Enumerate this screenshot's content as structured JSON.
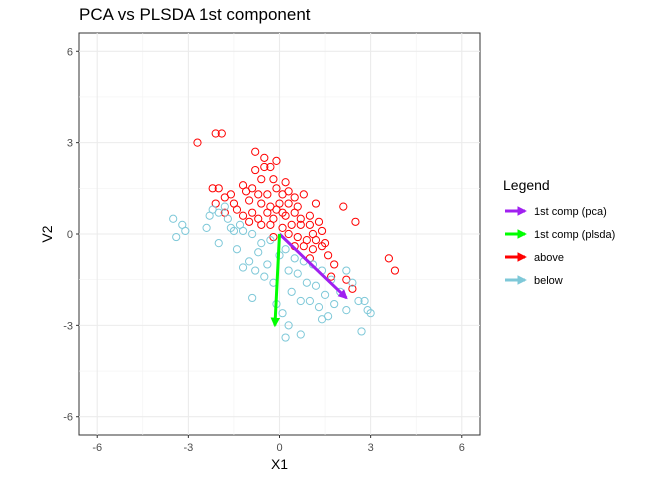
{
  "chart_data": {
    "type": "scatter",
    "title": "PCA vs PLSDA 1st component",
    "xlabel": "X1",
    "ylabel": "V2",
    "xlim": [
      -6.6,
      6.6
    ],
    "ylim": [
      -6.6,
      6.6
    ],
    "x_ticks": [
      -6,
      -3,
      0,
      3,
      6
    ],
    "y_ticks": [
      -6,
      -3,
      0,
      3,
      6
    ],
    "x_tick_labels": [
      "-6",
      "-3",
      "0",
      "3",
      "6"
    ],
    "y_tick_labels": [
      "-6",
      "-3",
      "0",
      "3",
      "6"
    ],
    "grid": true,
    "legend_position": "right",
    "legend": {
      "title": "Legend",
      "entries": [
        {
          "label": "1st comp (pca)",
          "color": "#a020f0"
        },
        {
          "label": "1st comp (plsda)",
          "color": "#00ff00"
        },
        {
          "label": "above",
          "color": "#ff0000"
        },
        {
          "label": "below",
          "color": "#7ec8d8"
        }
      ]
    },
    "series": [
      {
        "name": "above",
        "color": "#ff0000",
        "points": [
          [
            -2.7,
            3.0
          ],
          [
            -2.1,
            3.3
          ],
          [
            -1.9,
            3.3
          ],
          [
            -0.8,
            2.7
          ],
          [
            -0.5,
            2.5
          ],
          [
            -0.5,
            2.2
          ],
          [
            -0.3,
            2.2
          ],
          [
            -0.1,
            2.4
          ],
          [
            -0.8,
            2.1
          ],
          [
            -0.6,
            1.8
          ],
          [
            -0.2,
            1.8
          ],
          [
            0.2,
            1.7
          ],
          [
            0.3,
            1.4
          ],
          [
            -2.2,
            1.5
          ],
          [
            -2.0,
            1.5
          ],
          [
            -1.6,
            1.3
          ],
          [
            -1.2,
            1.6
          ],
          [
            -1.1,
            1.4
          ],
          [
            -0.9,
            1.5
          ],
          [
            -0.7,
            1.3
          ],
          [
            -0.4,
            1.3
          ],
          [
            -0.1,
            1.5
          ],
          [
            0.1,
            1.3
          ],
          [
            0.5,
            1.2
          ],
          [
            -1.8,
            1.2
          ],
          [
            -1.5,
            1.0
          ],
          [
            -1.0,
            1.1
          ],
          [
            -0.6,
            1.0
          ],
          [
            -0.3,
            0.9
          ],
          [
            0.0,
            1.0
          ],
          [
            0.3,
            1.0
          ],
          [
            0.6,
            0.9
          ],
          [
            0.8,
            1.3
          ],
          [
            1.2,
            1.0
          ],
          [
            -2.1,
            1.0
          ],
          [
            -1.8,
            0.7
          ],
          [
            -1.4,
            0.8
          ],
          [
            -1.2,
            0.6
          ],
          [
            -0.9,
            0.7
          ],
          [
            -0.7,
            0.5
          ],
          [
            -0.4,
            0.7
          ],
          [
            -0.2,
            0.5
          ],
          [
            0.2,
            0.6
          ],
          [
            0.5,
            0.7
          ],
          [
            0.7,
            0.5
          ],
          [
            1.0,
            0.6
          ],
          [
            1.3,
            0.4
          ],
          [
            -1.0,
            0.4
          ],
          [
            -0.6,
            0.3
          ],
          [
            -0.3,
            0.3
          ],
          [
            0.1,
            0.2
          ],
          [
            0.4,
            0.3
          ],
          [
            0.7,
            0.3
          ],
          [
            1.0,
            0.3
          ],
          [
            1.4,
            0.1
          ],
          [
            0.3,
            0.0
          ],
          [
            0.6,
            -0.1
          ],
          [
            0.9,
            -0.2
          ],
          [
            1.2,
            -0.2
          ],
          [
            -0.2,
            -0.1
          ],
          [
            0.5,
            -0.4
          ],
          [
            0.8,
            -0.4
          ],
          [
            1.1,
            -0.5
          ],
          [
            1.4,
            -0.4
          ],
          [
            1.0,
            -0.8
          ],
          [
            1.6,
            -0.7
          ],
          [
            1.8,
            -1.0
          ],
          [
            2.1,
            0.9
          ],
          [
            2.5,
            0.4
          ],
          [
            3.6,
            -0.8
          ],
          [
            3.8,
            -1.2
          ],
          [
            1.7,
            -1.4
          ],
          [
            2.2,
            -1.5
          ],
          [
            2.4,
            -1.8
          ],
          [
            1.5,
            -0.3
          ],
          [
            0.1,
            0.7
          ],
          [
            -0.1,
            0.8
          ],
          [
            1.1,
            0.0
          ]
        ]
      },
      {
        "name": "below",
        "color": "#7ec8d8",
        "points": [
          [
            -3.5,
            0.5
          ],
          [
            -3.2,
            0.3
          ],
          [
            -3.1,
            0.1
          ],
          [
            -3.4,
            -0.1
          ],
          [
            -2.4,
            0.2
          ],
          [
            -2.3,
            0.6
          ],
          [
            -2.2,
            0.8
          ],
          [
            -2.0,
            0.7
          ],
          [
            -2.0,
            -0.3
          ],
          [
            -1.7,
            0.5
          ],
          [
            -1.6,
            0.2
          ],
          [
            -1.5,
            0.1
          ],
          [
            -1.3,
            0.3
          ],
          [
            -1.8,
            0.9
          ],
          [
            -1.4,
            -0.5
          ],
          [
            -1.2,
            -1.1
          ],
          [
            -1.0,
            -0.9
          ],
          [
            -0.9,
            -2.1
          ],
          [
            -0.8,
            -1.2
          ],
          [
            -0.7,
            -0.6
          ],
          [
            -0.6,
            -0.3
          ],
          [
            -0.5,
            -1.4
          ],
          [
            -0.4,
            -1.0
          ],
          [
            -0.3,
            -0.2
          ],
          [
            -0.2,
            -1.6
          ],
          [
            -0.1,
            -2.3
          ],
          [
            0.1,
            -2.6
          ],
          [
            0.0,
            -0.7
          ],
          [
            0.2,
            -0.5
          ],
          [
            0.3,
            -1.2
          ],
          [
            0.4,
            -1.9
          ],
          [
            0.5,
            -0.8
          ],
          [
            0.6,
            -1.3
          ],
          [
            0.7,
            -2.2
          ],
          [
            0.8,
            -0.9
          ],
          [
            0.9,
            -1.6
          ],
          [
            1.0,
            -2.2
          ],
          [
            1.1,
            -1.0
          ],
          [
            1.2,
            -1.7
          ],
          [
            1.3,
            -2.4
          ],
          [
            1.4,
            -1.2
          ],
          [
            1.5,
            -2.0
          ],
          [
            1.6,
            -2.7
          ],
          [
            1.7,
            -1.5
          ],
          [
            1.8,
            -2.3
          ],
          [
            2.0,
            -1.9
          ],
          [
            2.2,
            -2.5
          ],
          [
            2.4,
            -1.6
          ],
          [
            2.6,
            -2.2
          ],
          [
            2.7,
            -3.2
          ],
          [
            2.8,
            -2.2
          ],
          [
            2.9,
            -2.5
          ],
          [
            3.0,
            -2.6
          ],
          [
            2.2,
            -1.2
          ],
          [
            0.3,
            -3.0
          ],
          [
            0.2,
            -3.4
          ],
          [
            0.7,
            -3.3
          ],
          [
            1.4,
            -2.8
          ],
          [
            -1.2,
            0.1
          ],
          [
            -0.9,
            0.0
          ]
        ]
      }
    ],
    "arrows": [
      {
        "name": "1st comp (pca)",
        "color": "#a020f0",
        "from": [
          0.0,
          0.0
        ],
        "to": [
          2.2,
          -2.1
        ]
      },
      {
        "name": "1st comp (plsda)",
        "color": "#00ff00",
        "from": [
          0.0,
          0.0
        ],
        "to": [
          -0.15,
          -3.0
        ]
      }
    ]
  }
}
